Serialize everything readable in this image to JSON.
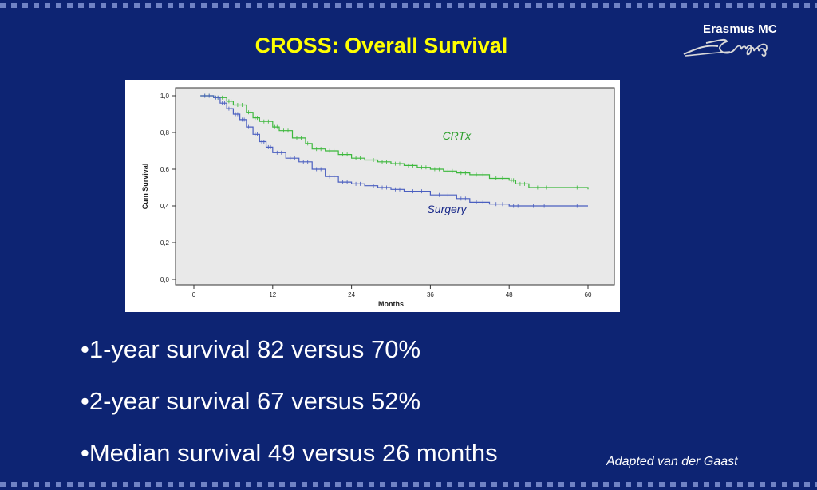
{
  "slide": {
    "title": "CROSS: Overall Survival",
    "logo_text": "Erasmus MC",
    "bullets": [
      "•1-year survival 82 versus 70%",
      "•2-year survival 67 versus 52%",
      "•Median survival 49 versus 26 months"
    ],
    "credit": "Adapted van der Gaast"
  },
  "colors": {
    "background": "#0d2473",
    "title": "#ffff00",
    "crtx": "#3cb83c",
    "surgery": "#4a5fc0"
  },
  "chart_data": {
    "type": "line",
    "ylabel": "Cum Survival",
    "xlabel": "Months",
    "xlim": [
      0,
      60
    ],
    "ylim": [
      0,
      1
    ],
    "xticks": [
      "0",
      "12",
      "24",
      "36",
      "48",
      "60"
    ],
    "yticks": [
      "0,0",
      "0,2",
      "0,4",
      "0,6",
      "0,8",
      "1,0"
    ],
    "series": [
      {
        "name": "CRTx",
        "color": "#3cb83c",
        "x": [
          1,
          3,
          5,
          6,
          8,
          9,
          10,
          12,
          13,
          15,
          17,
          18,
          20,
          22,
          24,
          26,
          28,
          30,
          32,
          34,
          36,
          38,
          40,
          42,
          45,
          48,
          49,
          51,
          55,
          60
        ],
        "y": [
          1.0,
          0.99,
          0.97,
          0.95,
          0.91,
          0.88,
          0.86,
          0.83,
          0.81,
          0.77,
          0.74,
          0.71,
          0.7,
          0.68,
          0.66,
          0.65,
          0.64,
          0.63,
          0.62,
          0.61,
          0.6,
          0.59,
          0.58,
          0.57,
          0.55,
          0.54,
          0.52,
          0.5,
          0.5,
          0.49
        ]
      },
      {
        "name": "Surgery",
        "color": "#4a5fc0",
        "x": [
          1,
          3,
          4,
          5,
          6,
          7,
          8,
          9,
          10,
          11,
          12,
          14,
          16,
          18,
          20,
          22,
          24,
          26,
          28,
          30,
          32,
          36,
          40,
          42,
          45,
          48,
          50,
          55,
          60
        ],
        "y": [
          1.0,
          0.99,
          0.96,
          0.93,
          0.9,
          0.87,
          0.83,
          0.79,
          0.75,
          0.72,
          0.69,
          0.66,
          0.64,
          0.6,
          0.56,
          0.53,
          0.52,
          0.51,
          0.5,
          0.49,
          0.48,
          0.46,
          0.44,
          0.42,
          0.41,
          0.4,
          0.4,
          0.4,
          0.4
        ]
      }
    ],
    "annotations": [
      {
        "text": "CRTx",
        "series": "CRTx"
      },
      {
        "text": "Surgery",
        "series": "Surgery"
      }
    ]
  }
}
